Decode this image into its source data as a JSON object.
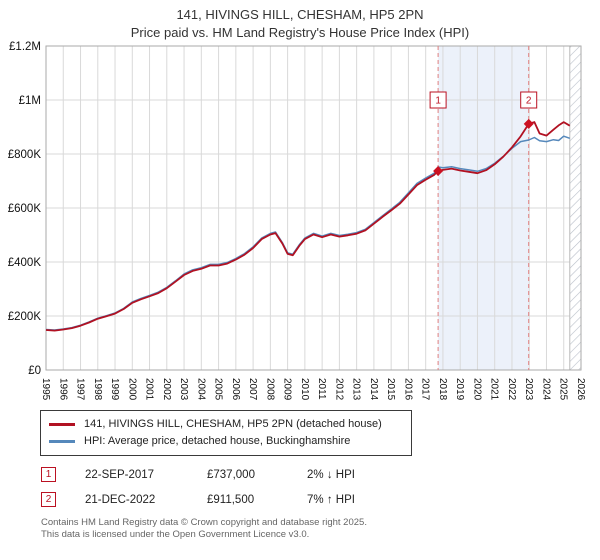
{
  "title": "141, HIVINGS HILL, CHESHAM, HP5 2PN",
  "subtitle": "Price paid vs. HM Land Registry's House Price Index (HPI)",
  "legend": [
    {
      "label": "141, HIVINGS HILL, CHESHAM, HP5 2PN (detached house)",
      "color": "#b11122"
    },
    {
      "label": "HPI: Average price, detached house, Buckinghamshire",
      "color": "#5588bb"
    }
  ],
  "transactions": [
    {
      "id": "1",
      "date": "22-SEP-2017",
      "price": "£737,000",
      "hpi": "2% ↓ HPI",
      "x": 2017.72,
      "value": 737
    },
    {
      "id": "2",
      "date": "21-DEC-2022",
      "price": "£911,500",
      "hpi": "7% ↑ HPI",
      "x": 2022.97,
      "value": 911.5
    }
  ],
  "footer": {
    "line1": "Contains HM Land Registry data © Crown copyright and database right 2025.",
    "line2": "This data is licensed under the Open Government Licence v3.0."
  },
  "chart_data": {
    "type": "line",
    "title": "141, HIVINGS HILL, CHESHAM, HP5 2PN — Price paid vs. HPI",
    "xlabel": "",
    "ylabel": "",
    "grid": true,
    "legend_position": "bottom",
    "xlim": [
      1995,
      2026
    ],
    "ylim": [
      0,
      1200
    ],
    "x_ticks": [
      1995,
      1996,
      1997,
      1998,
      1999,
      2000,
      2001,
      2002,
      2003,
      2004,
      2005,
      2006,
      2007,
      2008,
      2009,
      2010,
      2011,
      2012,
      2013,
      2014,
      2015,
      2016,
      2017,
      2018,
      2019,
      2020,
      2021,
      2022,
      2023,
      2024,
      2025,
      2026
    ],
    "y_ticks": [
      {
        "v": 0,
        "label": "£0"
      },
      {
        "v": 200,
        "label": "£200K"
      },
      {
        "v": 400,
        "label": "£400K"
      },
      {
        "v": 600,
        "label": "£600K"
      },
      {
        "v": 800,
        "label": "£800K"
      },
      {
        "v": 1000,
        "label": "£1M"
      },
      {
        "v": 1200,
        "label": "£1.2M"
      }
    ],
    "units": "thousands of GBP",
    "x": [
      1995,
      1995.5,
      1996,
      1996.5,
      1997,
      1997.5,
      1998,
      1998.5,
      1999,
      1999.5,
      2000,
      2000.5,
      2001,
      2001.5,
      2002,
      2002.5,
      2003,
      2003.5,
      2004,
      2004.5,
      2005,
      2005.5,
      2006,
      2006.5,
      2007,
      2007.5,
      2008,
      2008.3,
      2008.7,
      2009,
      2009.3,
      2009.7,
      2010,
      2010.5,
      2011,
      2011.5,
      2012,
      2012.5,
      2013,
      2013.5,
      2014,
      2014.5,
      2015,
      2015.5,
      2016,
      2016.5,
      2017,
      2017.5,
      2017.72,
      2018,
      2018.5,
      2019,
      2019.5,
      2020,
      2020.5,
      2021,
      2021.5,
      2022,
      2022.5,
      2022.97,
      2023.3,
      2023.6,
      2024,
      2024.4,
      2024.7,
      2025,
      2025.35
    ],
    "series": [
      {
        "name": "141, HIVINGS HILL, CHESHAM, HP5 2PN (detached house)",
        "color": "#b11122",
        "width": 1.8,
        "values": [
          148,
          146,
          150,
          155,
          164,
          176,
          190,
          199,
          209,
          226,
          249,
          262,
          273,
          285,
          303,
          327,
          352,
          367,
          375,
          387,
          387,
          394,
          409,
          427,
          452,
          485,
          502,
          507,
          468,
          430,
          425,
          462,
          485,
          502,
          492,
          502,
          494,
          499,
          505,
          517,
          542,
          567,
          591,
          616,
          650,
          685,
          705,
          723,
          737,
          741,
          746,
          739,
          734,
          729,
          740,
          762,
          790,
          825,
          865,
          911.5,
          918,
          876,
          868,
          890,
          906,
          918,
          905
        ]
      },
      {
        "name": "HPI: Average price, detached house, Buckinghamshire",
        "color": "#5588bb",
        "width": 1.5,
        "values": [
          150,
          148,
          152,
          157,
          166,
          178,
          192,
          201,
          211,
          228,
          252,
          265,
          276,
          288,
          306,
          330,
          356,
          371,
          379,
          391,
          391,
          398,
          413,
          431,
          456,
          489,
          506,
          511,
          472,
          434,
          429,
          466,
          489,
          506,
          496,
          506,
          498,
          503,
          509,
          521,
          546,
          571,
          596,
          621,
          656,
          691,
          711,
          729,
          752,
          749,
          753,
          746,
          741,
          736,
          746,
          766,
          791,
          821,
          846,
          852,
          861,
          849,
          846,
          853,
          850,
          866,
          858
        ]
      }
    ],
    "shaded_region": [
      2017.72,
      2022.97
    ],
    "shade_color": "#dce6f5",
    "hatched_region": [
      2025.35,
      2026
    ],
    "dashed_lines": [
      2017.72,
      2022.97
    ],
    "dashed_color": "#e08080",
    "marker_color": "#cc1122",
    "label_y": 1000
  }
}
